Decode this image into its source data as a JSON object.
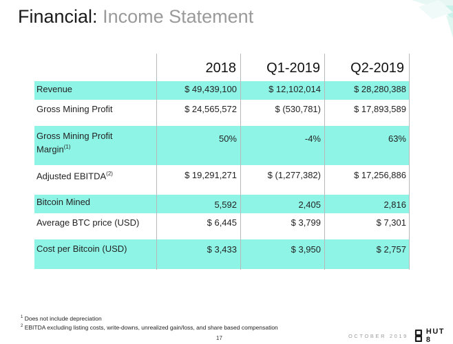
{
  "title": {
    "main": "Financial:",
    "sub": "Income Statement"
  },
  "table": {
    "columns": [
      "2018",
      "Q1-2019",
      "Q2-2019"
    ],
    "rows": [
      {
        "label": "Revenue",
        "sup": "",
        "values": [
          "$ 49,439,100",
          "$ 12,102,014",
          "$ 28,280,388"
        ]
      },
      {
        "label": "Gross Mining Profit",
        "sup": "",
        "values": [
          "$ 24,565,572",
          "$ (530,781)",
          "$ 17,893,589"
        ]
      },
      {
        "label": "Gross Mining Profit Margin",
        "sup": "(1)",
        "values": [
          "50%",
          "-4%",
          "63%"
        ]
      },
      {
        "label": "Adjusted EBITDA",
        "sup": "(2)",
        "values": [
          "$ 19,291,271",
          "$ (1,277,382)",
          "$ 17,256,886"
        ]
      },
      {
        "label": "Bitcoin Mined",
        "sup": "",
        "values": [
          "5,592",
          "2,405",
          "2,816"
        ]
      },
      {
        "label": "Average BTC price (USD)",
        "sup": "",
        "values": [
          "$ 6,445",
          "$ 3,799",
          "$ 7,301"
        ]
      },
      {
        "label": "Cost per Bitcoin (USD)",
        "sup": "",
        "values": [
          "$ 3,433",
          "$ 3,950",
          "$ 2,757"
        ]
      }
    ]
  },
  "footnotes": [
    {
      "num": "1",
      "text": "Does not include depreciation"
    },
    {
      "num": "2",
      "text": "EBITDA excluding listing costs, write-downs, unrealized gain/loss, and share based compensation"
    }
  ],
  "footer": {
    "page_number": "17",
    "date": "OCTOBER 2019",
    "logo_text": "HUT 8"
  },
  "colors": {
    "highlight": "#8ef5e6",
    "accent": "#5fe8d6",
    "title_sub": "#9a9a9a"
  }
}
